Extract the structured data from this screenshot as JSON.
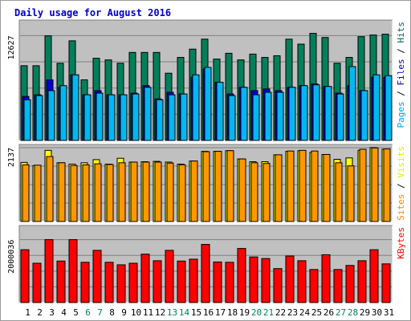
{
  "chart_data": {
    "type": "bar",
    "title": "Daily usage for August 2016",
    "categories": [
      "1",
      "2",
      "3",
      "4",
      "5",
      "6",
      "7",
      "8",
      "9",
      "10",
      "11",
      "12",
      "13",
      "14",
      "15",
      "16",
      "17",
      "18",
      "19",
      "20",
      "21",
      "22",
      "23",
      "24",
      "25",
      "26",
      "27",
      "28",
      "29",
      "30",
      "31"
    ],
    "weekend_days": [
      "6",
      "7",
      "13",
      "14",
      "20",
      "21",
      "27",
      "28"
    ],
    "panels": [
      {
        "id": "pages-files-hits",
        "max_label": "12627",
        "ymax": 14500,
        "grid": true,
        "legend": [
          {
            "text": "Pages",
            "color": "#00a0e0"
          },
          {
            "text": "Files",
            "color": "#0000c0"
          },
          {
            "text": "Hits",
            "color": "#006858"
          }
        ],
        "series": [
          {
            "name": "Hits",
            "color": "#00805a",
            "values": [
              9000,
              9000,
              12600,
              9300,
              12000,
              7300,
              9900,
              9700,
              9300,
              10600,
              10600,
              10600,
              8100,
              10000,
              11000,
              12200,
              9800,
              10500,
              9700,
              10400,
              10000,
              10200,
              12200,
              11600,
              12900,
              12400,
              9300,
              10000,
              12500,
              12700,
              12800
            ]
          },
          {
            "name": "Files",
            "color": "#0000d0",
            "values": [
              5300,
              5500,
              7300,
              6400,
              7900,
              5500,
              6000,
              5500,
              5500,
              5700,
              6600,
              5000,
              5800,
              5600,
              7600,
              8600,
              7000,
              5600,
              6400,
              6000,
              6200,
              6000,
              6400,
              6600,
              6800,
              6500,
              5700,
              6600,
              6000,
              7600,
              7600
            ]
          },
          {
            "name": "Pages",
            "color": "#00b8f0",
            "values": [
              4900,
              5400,
              6000,
              6600,
              7900,
              5500,
              5700,
              5500,
              5500,
              5600,
              6400,
              4900,
              5500,
              5600,
              7900,
              8800,
              7000,
              5400,
              6400,
              5500,
              5800,
              5800,
              6400,
              6600,
              6700,
              6500,
              5600,
              8900,
              6000,
              7900,
              7800
            ]
          }
        ]
      },
      {
        "id": "sites-visits",
        "max_label": "2137",
        "ymax": 2230,
        "grid": true,
        "legend": [
          {
            "text": "Sites",
            "color": "#ff8000"
          },
          {
            "text": "Visits",
            "color": "#e8e800"
          }
        ],
        "series": [
          {
            "name": "Visits",
            "color": "#ffff00",
            "values": [
              1710,
              1620,
              2060,
              1700,
              1660,
              1700,
              1790,
              1660,
              1830,
              1720,
              1730,
              1740,
              1720,
              1660,
              1750,
              2030,
              2030,
              2050,
              1810,
              1730,
              1730,
              1930,
              2030,
              2050,
              2000,
              1940,
              1800,
              1840,
              2060,
              2140,
              2090
            ]
          },
          {
            "name": "Sites",
            "color": "#ff9800",
            "values": [
              1640,
              1630,
              1880,
              1700,
              1620,
              1640,
              1670,
              1650,
              1700,
              1720,
              1720,
              1720,
              1690,
              1640,
              1750,
              2020,
              2030,
              2050,
              1810,
              1700,
              1680,
              1930,
              2040,
              2060,
              2040,
              1940,
              1700,
              1610,
              2090,
              2130,
              2100
            ]
          }
        ]
      },
      {
        "id": "kbytes",
        "max_label": "2000036",
        "ymax": 2450000,
        "grid": true,
        "legend": [
          {
            "text": "KBytes",
            "color": "#ff0000"
          }
        ],
        "series": [
          {
            "name": "KBytes",
            "color": "#ff0000",
            "values": [
              1680000,
              1250000,
              2000000,
              1320000,
              2000000,
              1280000,
              1660000,
              1280000,
              1200000,
              1250000,
              1540000,
              1330000,
              1660000,
              1320000,
              1380000,
              1850000,
              1290000,
              1280000,
              1720000,
              1450000,
              1400000,
              1080000,
              1480000,
              1330000,
              1050000,
              1520000,
              1050000,
              1180000,
              1330000,
              1680000,
              1230000
            ]
          }
        ]
      }
    ]
  }
}
